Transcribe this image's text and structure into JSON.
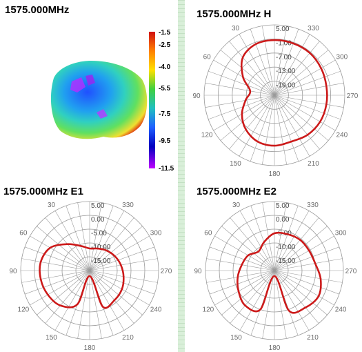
{
  "panels": {
    "surface_title": "1575.000MHz",
    "h_title": "1575.000MHz  H",
    "e1_title": "1575.000MHz  E1",
    "e2_title": "1575.000MHz  E2"
  },
  "colors": {
    "pattern": "#cc1a1a",
    "grid": "#9a9a9a",
    "colorbar": [
      "#d01010",
      "#ff8000",
      "#ffe000",
      "#40d040",
      "#20c0c0",
      "#2060ff",
      "#0000c0",
      "#c000ff"
    ]
  },
  "chart_data": [
    {
      "type": "surface",
      "title": "1575.000MHz",
      "colorbar_labels": [
        "-1.5",
        "-2.5",
        "-4.0",
        "-5.5",
        "-7.5",
        "-9.5",
        "-11.5"
      ],
      "colorbar_range": [
        -11.5,
        -1.5
      ]
    },
    {
      "type": "polar",
      "title": "1575.000MHz  H",
      "ring_labels": [
        "5.00",
        "-1.00",
        "-7.00",
        "-13.00",
        "-19.00"
      ],
      "angle_labels": [
        "30",
        "330",
        "60",
        "300",
        "90",
        "270",
        "120",
        "240",
        "150",
        "210",
        "180"
      ],
      "rlim": [
        -25,
        5
      ],
      "angles_deg": [
        0,
        20,
        40,
        60,
        80,
        100,
        120,
        140,
        160,
        180,
        200,
        220,
        240,
        260,
        280,
        300,
        320,
        340
      ],
      "values_db": [
        -1.5,
        -1.8,
        -4.0,
        -9.5,
        -14.5,
        -12.5,
        -9.0,
        -6.0,
        -4.0,
        -3.5,
        -4.0,
        -3.0,
        -2.5,
        -2.5,
        -2.5,
        -2.0,
        -1.5,
        -1.5
      ]
    },
    {
      "type": "polar",
      "title": "1575.000MHz  E1",
      "ring_labels": [
        "5.00",
        "0.00",
        "-5.00",
        "-10.00",
        "-15.00"
      ],
      "angle_labels": [
        "30",
        "330",
        "60",
        "300",
        "90",
        "270",
        "120",
        "240",
        "150",
        "210",
        "180"
      ],
      "rlim": [
        -20,
        5
      ],
      "angles_deg": [
        0,
        20,
        40,
        60,
        80,
        100,
        120,
        140,
        160,
        180,
        200,
        220,
        240,
        260,
        280,
        300,
        320,
        340
      ],
      "values_db": [
        -12.0,
        -10.5,
        -7.5,
        -3.5,
        -2.0,
        -2.0,
        -2.5,
        -3.5,
        -7.0,
        -18.0,
        -6.0,
        -6.0,
        -6.5,
        -7.5,
        -8.5,
        -9.5,
        -10.5,
        -11.5
      ]
    },
    {
      "type": "polar",
      "title": "1575.000MHz  E2",
      "ring_labels": [
        "5.00",
        "0.00",
        "-5.00",
        "-10.00",
        "-15.00"
      ],
      "angle_labels": [
        "30",
        "330",
        "60",
        "300",
        "90",
        "270",
        "120",
        "240",
        "150",
        "210",
        "180"
      ],
      "rlim": [
        -20,
        5
      ],
      "angles_deg": [
        0,
        20,
        40,
        60,
        80,
        100,
        120,
        140,
        160,
        180,
        200,
        220,
        240,
        260,
        280,
        300,
        320,
        340
      ],
      "values_db": [
        -6.5,
        -9.0,
        -11.0,
        -9.0,
        -8.0,
        -6.5,
        -5.0,
        -3.5,
        -5.0,
        -18.0,
        -4.5,
        -2.5,
        -1.5,
        -3.0,
        -5.0,
        -5.5,
        -5.5,
        -6.0
      ]
    }
  ]
}
